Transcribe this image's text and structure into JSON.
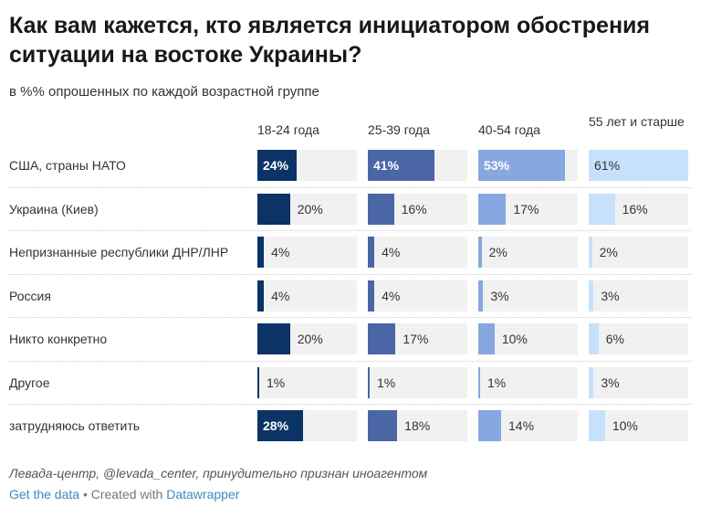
{
  "title": "Как вам кажется, кто является инициатором обострения ситуации на востоке Украины?",
  "subtitle": "в %% опрошенных по каждой возрастной группе",
  "notes": "Левада-центр, @levada_center, принудительно признан иноагентом",
  "footer": {
    "get_data": "Get the data",
    "sep": " • Created with ",
    "datawrapper": "Datawrapper"
  },
  "chart_data": {
    "type": "bar",
    "max": 61,
    "columns": [
      {
        "name": "18-24 года",
        "color": "#0b3366"
      },
      {
        "name": "25-39 года",
        "color": "#4a66a4"
      },
      {
        "name": "40-54 года",
        "color": "#87a7e0"
      },
      {
        "name": "55 лет и старше",
        "color": "#c6e1fb"
      }
    ],
    "categories": [
      "США, страны НАТО",
      "Украина (Киев)",
      "Непризнанные республики ДНР/ЛНР",
      "Россия",
      "Никто конкретно",
      "Другое",
      "затрудняюсь ответить"
    ],
    "series": [
      {
        "name": "18-24 года",
        "values": [
          24,
          20,
          4,
          4,
          20,
          1,
          28
        ]
      },
      {
        "name": "25-39 года",
        "values": [
          41,
          16,
          4,
          4,
          17,
          1,
          18
        ]
      },
      {
        "name": "40-54 года",
        "values": [
          53,
          17,
          2,
          3,
          10,
          1,
          14
        ]
      },
      {
        "name": "55 лет и старше",
        "values": [
          61,
          16,
          2,
          3,
          6,
          3,
          10
        ]
      }
    ],
    "labels": [
      [
        "24%",
        "20%",
        "4%",
        "4%",
        "20%",
        "1%",
        "28%"
      ],
      [
        "41%",
        "16%",
        "4%",
        "4%",
        "17%",
        "1%",
        "18%"
      ],
      [
        "53%",
        "17%",
        "2%",
        "3%",
        "10%",
        "1%",
        "14%"
      ],
      [
        "61%",
        "16%",
        "2%",
        "3%",
        "6%",
        "3%",
        "10%"
      ]
    ]
  }
}
